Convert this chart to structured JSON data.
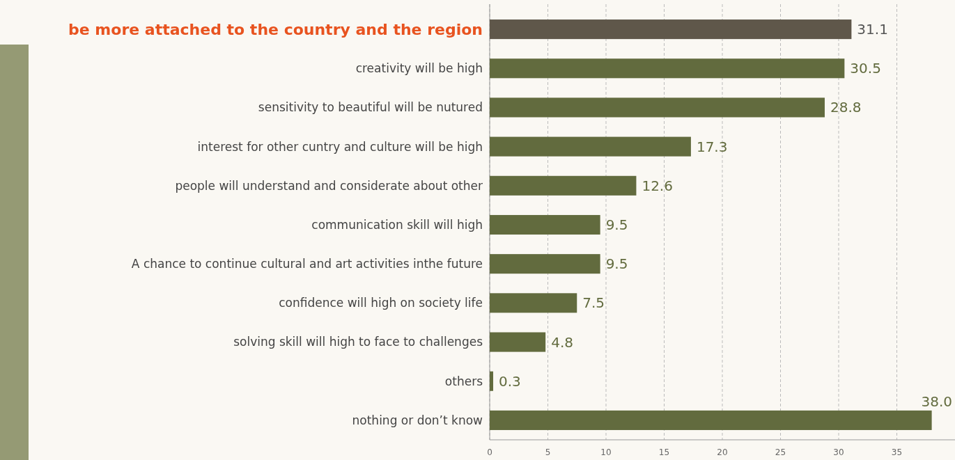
{
  "chart_data": {
    "type": "bar",
    "orientation": "horizontal",
    "categories": [
      "be more attached to the country and the region",
      "creativity  will be high",
      "sensitivity to beautiful will be nutured",
      "interest for other cuntry and culture will be high",
      "people will understand and considerate about other",
      "communication skill will high",
      "A chance to continue cultural and art activities inthe future",
      "confidence will high on society life",
      "solving skill will high to face to challenges",
      "others",
      "nothing or don’t know"
    ],
    "values": [
      31.1,
      30.5,
      28.8,
      17.3,
      12.6,
      9.5,
      9.5,
      7.5,
      4.8,
      0.3,
      38.0
    ],
    "colors": [
      "#5f574a",
      "#626b3e",
      "#626b3e",
      "#626b3e",
      "#626b3e",
      "#626b3e",
      "#626b3e",
      "#626b3e",
      "#626b3e",
      "#626b3e",
      "#626b3e"
    ],
    "xlim": [
      0,
      40
    ],
    "xticks": [
      0,
      5,
      10,
      15,
      20,
      25,
      30,
      35
    ],
    "grid": "x",
    "value_labels": [
      "31.1",
      "30.5",
      "28.8",
      "17.3",
      "12.6",
      "9.5",
      "9.5",
      "7.5",
      "4.8",
      "0.3",
      "38.0"
    ]
  }
}
